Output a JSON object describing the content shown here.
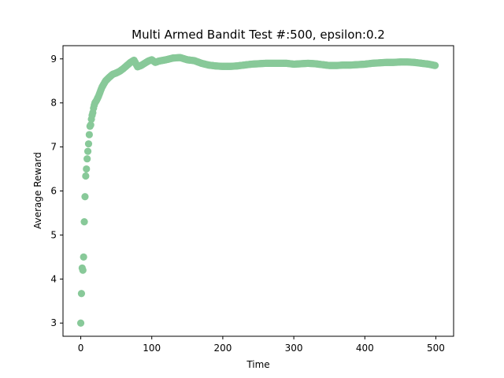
{
  "chart_data": {
    "type": "scatter",
    "title": "Multi Armed Bandit Test #:500, epsilon:0.2",
    "xlabel": "Time",
    "ylabel": "Average Reward",
    "xlim": [
      -25,
      525
    ],
    "ylim": [
      2.7,
      9.3
    ],
    "xticks": [
      0,
      100,
      200,
      300,
      400,
      500
    ],
    "yticks": [
      3,
      4,
      5,
      6,
      7,
      8,
      9
    ],
    "grid": false,
    "color": "#88c999",
    "n_points": 500,
    "curve": [
      [
        0,
        3.0
      ],
      [
        1,
        3.67
      ],
      [
        2,
        4.25
      ],
      [
        3,
        4.2
      ],
      [
        4,
        4.5
      ],
      [
        5,
        5.3
      ],
      [
        6,
        5.87
      ],
      [
        7,
        6.34
      ],
      [
        8,
        6.5
      ],
      [
        9,
        6.73
      ],
      [
        10,
        6.9
      ],
      [
        11,
        7.07
      ],
      [
        12,
        7.28
      ],
      [
        13,
        7.47
      ],
      [
        14,
        7.5
      ],
      [
        15,
        7.63
      ],
      [
        16,
        7.72
      ],
      [
        17,
        7.78
      ],
      [
        18,
        7.88
      ],
      [
        19,
        7.95
      ],
      [
        20,
        8.0
      ],
      [
        22,
        8.05
      ],
      [
        25,
        8.15
      ],
      [
        28,
        8.28
      ],
      [
        30,
        8.36
      ],
      [
        35,
        8.5
      ],
      [
        40,
        8.58
      ],
      [
        45,
        8.65
      ],
      [
        50,
        8.68
      ],
      [
        55,
        8.72
      ],
      [
        60,
        8.78
      ],
      [
        65,
        8.85
      ],
      [
        70,
        8.92
      ],
      [
        75,
        8.97
      ],
      [
        80,
        8.82
      ],
      [
        85,
        8.85
      ],
      [
        90,
        8.9
      ],
      [
        95,
        8.95
      ],
      [
        100,
        8.98
      ],
      [
        105,
        8.92
      ],
      [
        110,
        8.95
      ],
      [
        120,
        8.98
      ],
      [
        130,
        9.02
      ],
      [
        140,
        9.03
      ],
      [
        150,
        8.98
      ],
      [
        160,
        8.96
      ],
      [
        170,
        8.9
      ],
      [
        180,
        8.86
      ],
      [
        190,
        8.84
      ],
      [
        200,
        8.83
      ],
      [
        210,
        8.83
      ],
      [
        220,
        8.84
      ],
      [
        230,
        8.86
      ],
      [
        240,
        8.88
      ],
      [
        250,
        8.89
      ],
      [
        260,
        8.9
      ],
      [
        270,
        8.9
      ],
      [
        280,
        8.9
      ],
      [
        290,
        8.9
      ],
      [
        300,
        8.88
      ],
      [
        310,
        8.89
      ],
      [
        320,
        8.9
      ],
      [
        330,
        8.89
      ],
      [
        340,
        8.87
      ],
      [
        350,
        8.85
      ],
      [
        360,
        8.85
      ],
      [
        370,
        8.86
      ],
      [
        380,
        8.86
      ],
      [
        390,
        8.87
      ],
      [
        400,
        8.88
      ],
      [
        410,
        8.9
      ],
      [
        420,
        8.91
      ],
      [
        430,
        8.92
      ],
      [
        440,
        8.92
      ],
      [
        450,
        8.93
      ],
      [
        460,
        8.93
      ],
      [
        470,
        8.92
      ],
      [
        480,
        8.9
      ],
      [
        490,
        8.88
      ],
      [
        499,
        8.85
      ]
    ]
  }
}
